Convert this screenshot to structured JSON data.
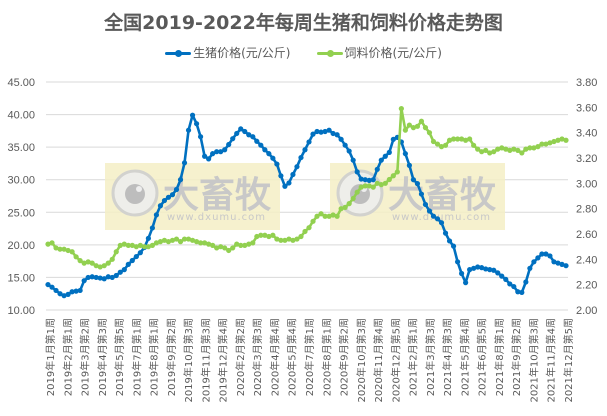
{
  "chart_data": {
    "type": "line",
    "title": "全国2019-2022年每周生猪和饲料价格走势图",
    "legend_position": "top",
    "grid": true,
    "xlabel": "",
    "ylabel_left": "",
    "ylabel_right": "",
    "ylim_left": [
      10,
      45
    ],
    "yticks_left": [
      "10.00",
      "15.00",
      "20.00",
      "25.00",
      "30.00",
      "35.00",
      "40.00",
      "45.00"
    ],
    "ylim_right": [
      2.0,
      3.8
    ],
    "yticks_right": [
      "2.00",
      "2.20",
      "2.40",
      "2.60",
      "2.80",
      "3.00",
      "3.20",
      "3.40",
      "3.60",
      "3.80"
    ],
    "x_tick_labels": [
      "2019年1月第1周",
      "2019年2月第1周",
      "2019年3月第2周",
      "2019年4月第3周",
      "2019年5月第5周",
      "2019年7月第1周",
      "2019年8月第1周",
      "2019年9月第2周",
      "2019年10月第3周",
      "2019年11月第3周",
      "2019年12月第4周",
      "2020年2月第2周",
      "2020年3月第3周",
      "2020年4月第4周",
      "2020年5月第4周",
      "2020年7月第1周",
      "2020年8月第1周",
      "2020年9月第2周",
      "2020年10月第3周",
      "2020年11月第4周",
      "2020年12月第5周",
      "2021年2月第1周",
      "2021年3月第3周",
      "2021年4月第3周",
      "2021年5月第4周",
      "2021年6月第5周",
      "2021年8月第1周",
      "2021年9月第2周",
      "2021年10月第3周",
      "2021年11月第4周",
      "2021年12月第5周"
    ],
    "series": [
      {
        "name": "生猪价格(元/公斤)",
        "axis": "left",
        "color": "#0070C0",
        "values": [
          13.9,
          13.5,
          13.0,
          12.5,
          12.2,
          12.4,
          12.8,
          12.9,
          13.0,
          14.5,
          15.0,
          15.1,
          15.0,
          14.9,
          14.8,
          15.1,
          15.0,
          15.3,
          15.8,
          16.2,
          17.0,
          17.6,
          18.2,
          18.8,
          19.6,
          21.0,
          22.6,
          24.6,
          26.0,
          26.8,
          27.3,
          27.7,
          28.5,
          30.0,
          32.6,
          37.6,
          39.9,
          38.6,
          36.6,
          33.6,
          33.2,
          34.0,
          34.3,
          34.3,
          34.6,
          35.4,
          36.3,
          37.1,
          37.8,
          37.4,
          36.9,
          36.6,
          35.9,
          35.3,
          34.6,
          34.0,
          33.3,
          32.4,
          30.6,
          29.0,
          29.5,
          30.8,
          32.0,
          33.4,
          34.6,
          35.8,
          37.0,
          37.4,
          37.3,
          37.4,
          37.6,
          37.1,
          36.9,
          36.2,
          35.3,
          34.4,
          33.0,
          31.2,
          30.1,
          30.0,
          29.9,
          30.0,
          31.6,
          33.0,
          33.6,
          34.2,
          36.2,
          36.5,
          35.8,
          34.0,
          32.2,
          30.0,
          29.4,
          27.8,
          26.2,
          25.2,
          24.4,
          24.0,
          23.4,
          21.8,
          20.6,
          19.8,
          17.4,
          15.6,
          14.2,
          16.2,
          16.4,
          16.6,
          16.5,
          16.3,
          16.2,
          16.1,
          15.7,
          15.2,
          14.7,
          14.0,
          13.6,
          12.8,
          12.7,
          14.3,
          16.4,
          17.4,
          18.0,
          18.6,
          18.6,
          18.3,
          17.4,
          17.2,
          17.0,
          16.8
        ]
      },
      {
        "name": "饲料价格(元/公斤)",
        "axis": "right",
        "color": "#92D050",
        "values": [
          2.52,
          2.53,
          2.49,
          2.48,
          2.48,
          2.47,
          2.46,
          2.42,
          2.39,
          2.37,
          2.38,
          2.37,
          2.35,
          2.34,
          2.35,
          2.37,
          2.4,
          2.46,
          2.51,
          2.52,
          2.51,
          2.51,
          2.5,
          2.51,
          2.5,
          2.5,
          2.51,
          2.53,
          2.54,
          2.55,
          2.54,
          2.55,
          2.56,
          2.54,
          2.56,
          2.56,
          2.55,
          2.54,
          2.53,
          2.53,
          2.52,
          2.51,
          2.49,
          2.5,
          2.49,
          2.47,
          2.49,
          2.52,
          2.51,
          2.51,
          2.52,
          2.53,
          2.58,
          2.59,
          2.59,
          2.58,
          2.59,
          2.56,
          2.55,
          2.55,
          2.56,
          2.55,
          2.56,
          2.58,
          2.62,
          2.65,
          2.7,
          2.74,
          2.76,
          2.74,
          2.74,
          2.75,
          2.74,
          2.8,
          2.81,
          2.84,
          2.88,
          2.93,
          2.97,
          2.98,
          2.98,
          2.97,
          3.0,
          2.99,
          3.0,
          3.03,
          3.06,
          3.09,
          3.59,
          3.42,
          3.46,
          3.44,
          3.45,
          3.49,
          3.44,
          3.4,
          3.33,
          3.31,
          3.29,
          3.3,
          3.34,
          3.35,
          3.35,
          3.35,
          3.34,
          3.35,
          3.3,
          3.27,
          3.25,
          3.26,
          3.24,
          3.25,
          3.27,
          3.28,
          3.27,
          3.26,
          3.27,
          3.26,
          3.24,
          3.27,
          3.28,
          3.28,
          3.29,
          3.31,
          3.31,
          3.32,
          3.33,
          3.34,
          3.35,
          3.34
        ]
      }
    ],
    "watermarks": [
      {
        "logo_text": "大畜牧",
        "url_text": "www.dxumu.com"
      },
      {
        "logo_text": "大畜牧",
        "url_text": "www.dxumu.com"
      }
    ],
    "colors": {
      "pig": "#0070C0",
      "feed": "#92D050",
      "grid": "#D9D9D9",
      "text": "#595959",
      "watermark_bg": "#F5EFC6"
    }
  },
  "legend": {
    "items": [
      {
        "label": "生猪价格(元/公斤)"
      },
      {
        "label": "饲料价格(元/公斤)"
      }
    ]
  }
}
